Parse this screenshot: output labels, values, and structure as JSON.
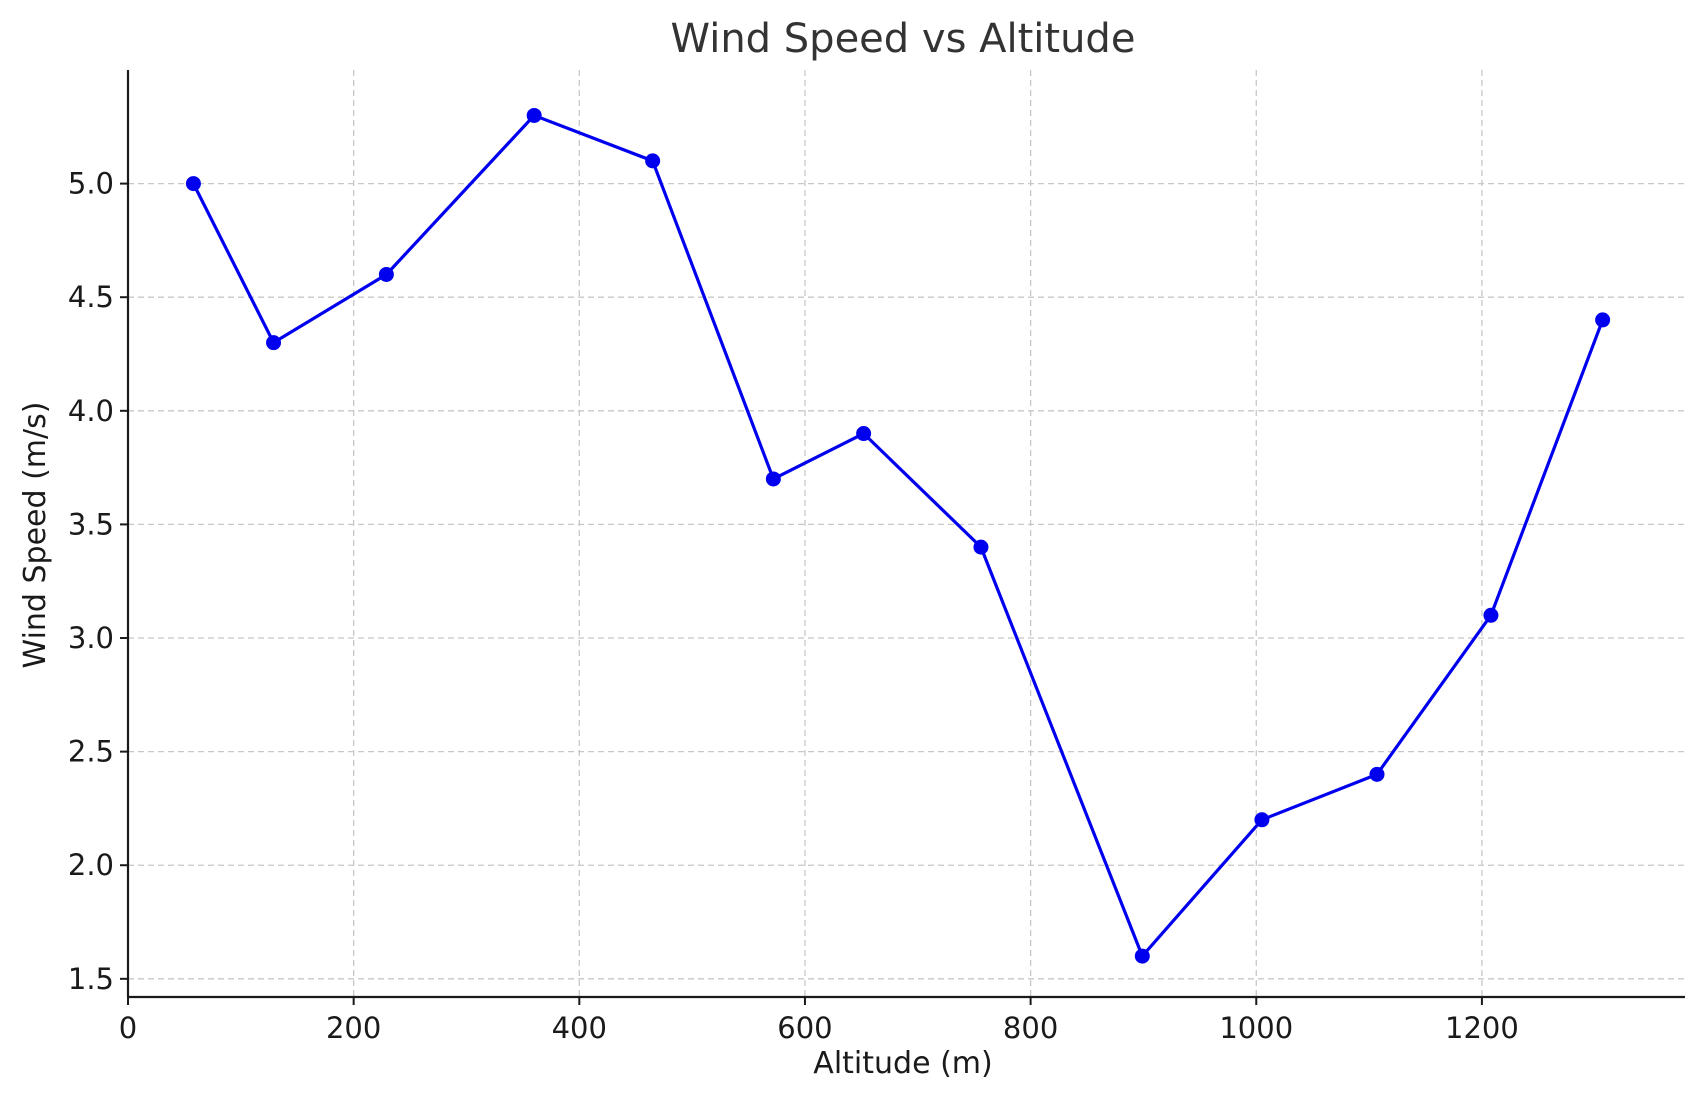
{
  "chart_data": {
    "type": "line",
    "title": "Wind Speed vs Altitude",
    "xlabel": "Altitude (m)",
    "ylabel": "Wind Speed (m/s)",
    "xlim": [
      0,
      1380
    ],
    "ylim": [
      1.42,
      5.5
    ],
    "x_ticks": [
      0,
      200,
      400,
      600,
      800,
      1000,
      1200
    ],
    "x_tick_labels": [
      "0",
      "200",
      "400",
      "600",
      "800",
      "1000",
      "1200"
    ],
    "y_ticks": [
      1.5,
      2.0,
      2.5,
      3.0,
      3.5,
      4.0,
      4.5,
      5.0
    ],
    "y_tick_labels": [
      "1.5",
      "2.0",
      "2.5",
      "3.0",
      "3.5",
      "4.0",
      "4.5",
      "5.0"
    ],
    "grid": true,
    "series": [
      {
        "color": "#0000ee",
        "marker": "circle",
        "x": [
          58,
          129,
          229,
          360,
          465,
          572,
          652,
          756,
          899,
          1005,
          1107,
          1208,
          1307
        ],
        "y": [
          5.0,
          4.3,
          4.6,
          5.3,
          5.1,
          3.7,
          3.9,
          3.4,
          1.6,
          2.2,
          2.4,
          3.1,
          4.4
        ]
      }
    ]
  }
}
